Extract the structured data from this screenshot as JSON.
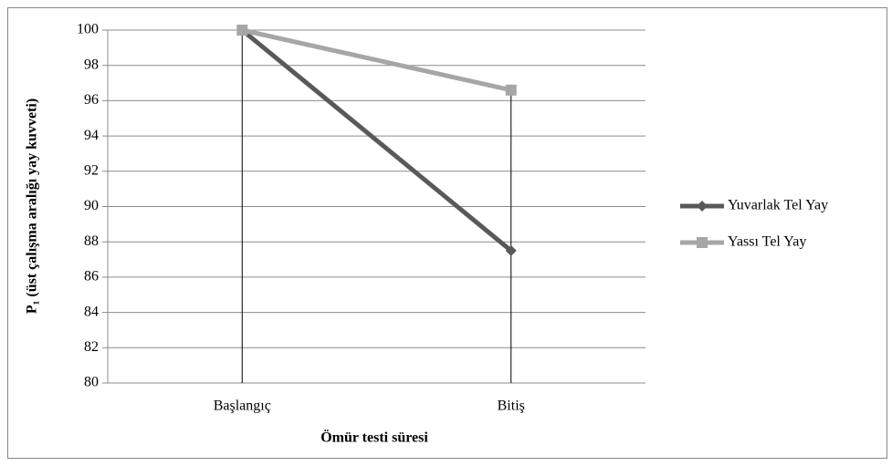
{
  "chart_data": {
    "type": "line",
    "xlabel": "Ömür testi süresi",
    "ylabel": "P₁ (üst çalışma aralığı yay kuvveti)",
    "categories": [
      "Başlangıç",
      "Bitiş"
    ],
    "series": [
      {
        "name": "Yuvarlak Tel Yay",
        "color": "#595959",
        "marker": "diamond",
        "values": [
          100,
          87.5
        ]
      },
      {
        "name": "Yassı Tel Yay",
        "color": "#a6a6a6",
        "marker": "square",
        "values": [
          100,
          96.6
        ]
      }
    ],
    "ylim": [
      80,
      100
    ],
    "yticks": [
      80,
      82,
      84,
      86,
      88,
      90,
      92,
      94,
      96,
      98,
      100
    ],
    "grid": true,
    "drop_lines": true,
    "legend": "right"
  }
}
